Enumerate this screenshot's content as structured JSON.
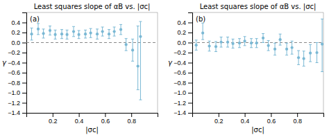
{
  "chart_data": [
    {
      "type": "scatter",
      "title": "Least squares slope of αB vs. |σc|",
      "xlabel": "|σc|",
      "ylabel": "γ",
      "annotations": [
        "(a)"
      ],
      "x": [
        0.04,
        0.09,
        0.13,
        0.18,
        0.22,
        0.27,
        0.31,
        0.36,
        0.4,
        0.45,
        0.49,
        0.54,
        0.58,
        0.63,
        0.67,
        0.72,
        0.76,
        0.81,
        0.85,
        0.87
      ],
      "values": [
        0.17,
        0.27,
        0.18,
        0.24,
        0.16,
        0.17,
        0.16,
        0.22,
        0.16,
        0.17,
        0.19,
        0.17,
        0.22,
        0.17,
        0.22,
        0.26,
        -0.04,
        -0.15,
        -0.47,
        0.12
      ],
      "yerr_lo": [
        0.12,
        0.11,
        0.09,
        0.09,
        0.09,
        0.09,
        0.09,
        0.1,
        0.08,
        0.08,
        0.09,
        0.1,
        0.09,
        0.09,
        0.09,
        0.1,
        0.12,
        0.22,
        0.47,
        1.26
      ],
      "yerr_hi": [
        0.12,
        0.11,
        0.09,
        0.09,
        0.09,
        0.09,
        0.09,
        0.1,
        0.08,
        0.08,
        0.09,
        0.1,
        0.09,
        0.09,
        0.09,
        0.1,
        0.12,
        0.22,
        0.8,
        0.3
      ],
      "hline": 0,
      "color": "#7ab8d4",
      "marker": "circle",
      "grid": false,
      "xlim": [
        0.0,
        1.0
      ],
      "ylim": [
        -1.4,
        0.6
      ],
      "xticks": [
        0.2,
        0.4,
        0.6,
        0.8
      ],
      "yticks": [
        0.4,
        0.2,
        {
          "value": 0.0,
          "label": "0.0"
        },
        {
          "value": -0.2,
          "label": "−0.2"
        },
        {
          "value": -0.4,
          "label": "−0.4"
        },
        {
          "value": -0.6,
          "label": "−0.6"
        },
        {
          "value": -0.8,
          "label": "−0.8"
        },
        {
          "value": -1.0,
          "label": "−1.0"
        },
        {
          "value": -1.2,
          "label": "−1.2"
        },
        {
          "value": -1.4,
          "label": "−1.4"
        }
      ]
    },
    {
      "type": "scatter",
      "title": "Least squares slope of αB vs. |σc|",
      "xlabel": "|σc|",
      "ylabel": "γ",
      "annotations": [
        "(b)"
      ],
      "x": [
        0.03,
        0.08,
        0.13,
        0.18,
        0.22,
        0.27,
        0.31,
        0.36,
        0.4,
        0.45,
        0.49,
        0.54,
        0.58,
        0.63,
        0.67,
        0.72,
        0.76,
        0.81,
        0.85,
        0.9,
        0.95,
        0.99
      ],
      "values": [
        -0.05,
        0.19,
        -0.07,
        -0.08,
        0.01,
        0.01,
        -0.02,
        -0.01,
        0.03,
        -0.01,
        -0.01,
        0.09,
        -0.06,
        -0.13,
        0.06,
        -0.13,
        -0.1,
        -0.3,
        -0.32,
        -0.21,
        -0.2,
        -0.03
      ],
      "yerr_lo": [
        0.1,
        0.13,
        0.1,
        0.1,
        0.1,
        0.1,
        0.09,
        0.09,
        0.09,
        0.09,
        0.09,
        0.09,
        0.1,
        0.12,
        0.11,
        0.12,
        0.13,
        0.14,
        0.15,
        0.17,
        0.2,
        0.55
      ],
      "yerr_hi": [
        0.1,
        0.2,
        0.1,
        0.1,
        0.1,
        0.1,
        0.09,
        0.09,
        0.09,
        0.09,
        0.09,
        0.09,
        0.1,
        0.12,
        0.11,
        0.12,
        0.13,
        0.14,
        0.15,
        0.17,
        0.2,
        0.5
      ],
      "hline": 0,
      "color": "#7ab8d4",
      "marker": "circle",
      "grid": false,
      "xlim": [
        0.0,
        1.0
      ],
      "ylim": [
        -1.4,
        0.6
      ],
      "xticks": [
        0.2,
        0.4,
        0.6,
        0.8
      ],
      "yticks": [
        0.4,
        0.2,
        {
          "value": 0.0,
          "label": "0.0"
        },
        {
          "value": -0.2,
          "label": "−0.2"
        },
        {
          "value": -0.4,
          "label": "−0.4"
        },
        {
          "value": -0.6,
          "label": "−0.6"
        },
        {
          "value": -0.8,
          "label": "−0.8"
        },
        {
          "value": -1.0,
          "label": "−1.0"
        },
        {
          "value": -1.2,
          "label": "−1.2"
        },
        {
          "value": -1.4,
          "label": "−1.4"
        }
      ]
    }
  ]
}
